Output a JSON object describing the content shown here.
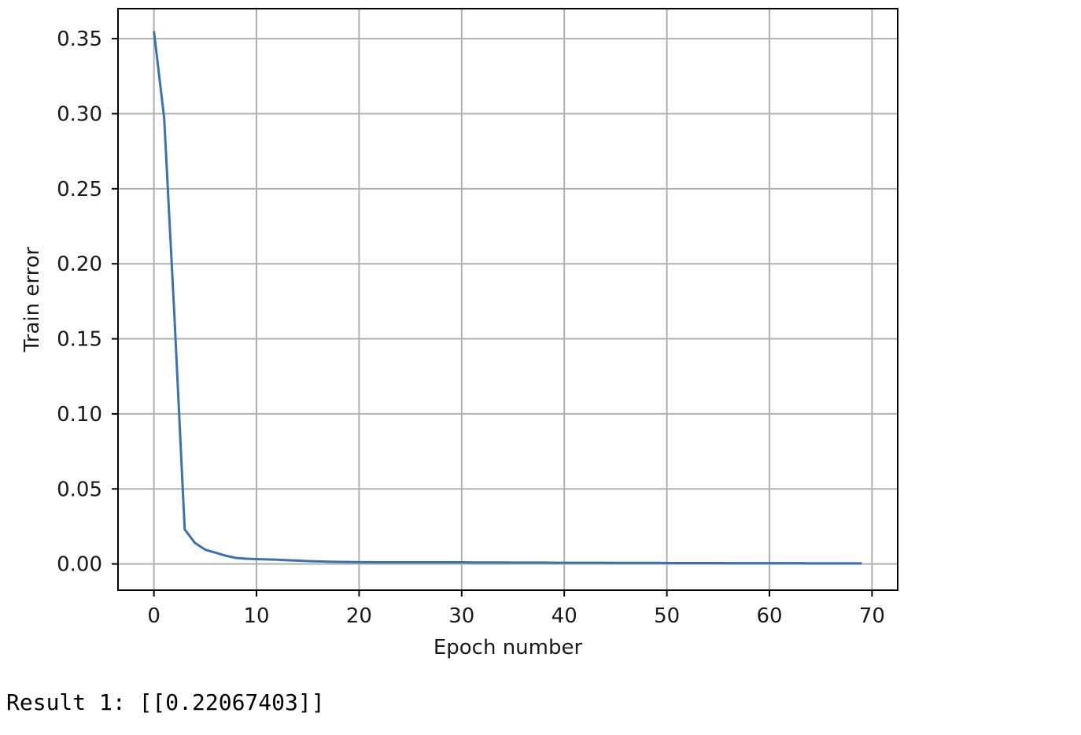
{
  "output": {
    "result_text": "Result 1: [[0.22067403]]"
  },
  "chart_data": {
    "type": "line",
    "title": "",
    "xlabel": "Epoch number",
    "ylabel": "Train error",
    "xlim": [
      -3.5,
      72.5
    ],
    "ylim": [
      -0.0175,
      0.37
    ],
    "xticks": [
      0,
      10,
      20,
      30,
      40,
      50,
      60,
      70
    ],
    "xtick_labels": [
      "0",
      "10",
      "20",
      "30",
      "40",
      "50",
      "60",
      "70"
    ],
    "yticks": [
      0.0,
      0.05,
      0.1,
      0.15,
      0.2,
      0.25,
      0.3,
      0.35
    ],
    "ytick_labels": [
      "0.00",
      "0.05",
      "0.10",
      "0.15",
      "0.20",
      "0.25",
      "0.30",
      "0.35"
    ],
    "grid": true,
    "line_color": "#3a72b0",
    "series": [
      {
        "x": [
          0,
          1,
          2,
          3,
          4,
          5,
          6,
          7,
          8,
          9,
          10,
          11,
          12,
          13,
          14,
          15,
          16,
          17,
          18,
          19,
          20,
          21,
          22,
          23,
          24,
          25,
          26,
          27,
          28,
          29,
          30,
          31,
          32,
          33,
          34,
          35,
          36,
          37,
          38,
          39,
          40,
          41,
          42,
          43,
          44,
          45,
          46,
          47,
          48,
          49,
          50,
          51,
          52,
          53,
          54,
          55,
          56,
          57,
          58,
          59,
          60,
          61,
          62,
          63,
          64,
          65,
          66,
          67,
          68,
          69
        ],
        "values": [
          0.355,
          0.297,
          0.165,
          0.023,
          0.014,
          0.0095,
          0.0075,
          0.0055,
          0.004,
          0.0035,
          0.0032,
          0.003,
          0.0028,
          0.0025,
          0.0022,
          0.0019,
          0.0017,
          0.0015,
          0.0014,
          0.0013,
          0.0012,
          0.0012,
          0.0011,
          0.0011,
          0.0011,
          0.0011,
          0.0011,
          0.0011,
          0.0011,
          0.0011,
          0.0011,
          0.001,
          0.001,
          0.001,
          0.001,
          0.0009,
          0.0009,
          0.0009,
          0.0009,
          0.0008,
          0.0008,
          0.0008,
          0.0008,
          0.0008,
          0.0008,
          0.0007,
          0.0007,
          0.0007,
          0.0007,
          0.0007,
          0.0006,
          0.0006,
          0.0006,
          0.0006,
          0.0006,
          0.0006,
          0.0005,
          0.0005,
          0.0005,
          0.0005,
          0.0005,
          0.0005,
          0.0005,
          0.0005,
          0.0004,
          0.0004,
          0.0004,
          0.0004,
          0.0004,
          0.0004
        ]
      }
    ]
  }
}
